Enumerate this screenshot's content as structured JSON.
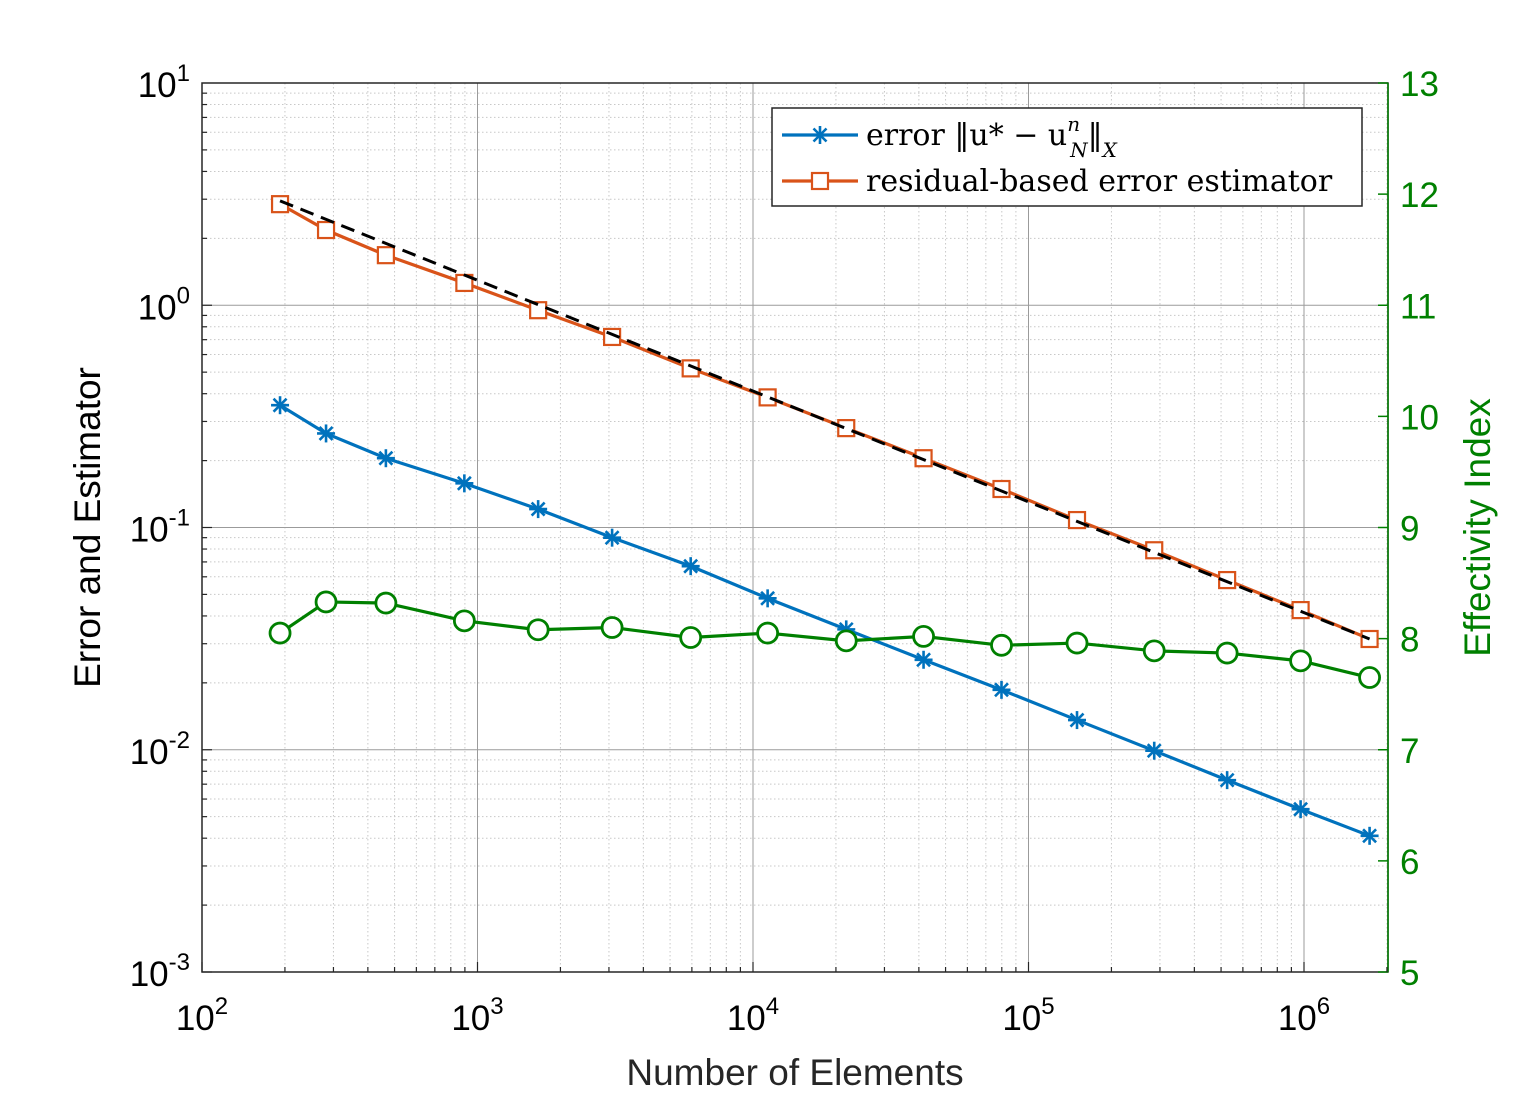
{
  "chart_data": {
    "type": "line",
    "xscale": "log",
    "xlabel": "Number of Elements",
    "ylabel_left": "Error and Estimator",
    "ylabel_right": "Effectivity Index",
    "xlim": [
      100,
      2000000
    ],
    "ylim_left": [
      0.001,
      10
    ],
    "ylim_right": [
      5,
      13
    ],
    "x_ticks": [
      {
        "base": "10",
        "exp": "2",
        "value": 100
      },
      {
        "base": "10",
        "exp": "3",
        "value": 1000
      },
      {
        "base": "10",
        "exp": "4",
        "value": 10000
      },
      {
        "base": "10",
        "exp": "5",
        "value": 100000
      },
      {
        "base": "10",
        "exp": "6",
        "value": 1000000
      }
    ],
    "y_left_ticks": [
      {
        "base": "10",
        "exp": "-3",
        "value": 0.001
      },
      {
        "base": "10",
        "exp": "-2",
        "value": 0.01
      },
      {
        "base": "10",
        "exp": "-1",
        "value": 0.1
      },
      {
        "base": "10",
        "exp": "0",
        "value": 1
      },
      {
        "base": "10",
        "exp": "1",
        "value": 10
      }
    ],
    "y_right_ticks": [
      "5",
      "6",
      "7",
      "8",
      "9",
      "10",
      "11",
      "12",
      "13"
    ],
    "x": [
      192,
      282,
      465,
      896,
      1660,
      3080,
      5940,
      11300,
      21800,
      41600,
      79800,
      150000,
      286000,
      526000,
      972000,
      1730000
    ],
    "series": [
      {
        "name": "error ‖u* − u_N^n‖_X",
        "axis": "left",
        "color": "#0072BD",
        "marker": "asterisk",
        "values": [
          0.355,
          0.265,
          0.205,
          0.158,
          0.121,
          0.09,
          0.067,
          0.048,
          0.0348,
          0.0254,
          0.0186,
          0.0136,
          0.0099,
          0.0073,
          0.0054,
          0.0041
        ]
      },
      {
        "name": "residual-based error estimator",
        "axis": "left",
        "color": "#D95319",
        "marker": "square",
        "values": [
          2.85,
          2.18,
          1.68,
          1.26,
          0.95,
          0.72,
          0.52,
          0.385,
          0.28,
          0.205,
          0.149,
          0.108,
          0.079,
          0.058,
          0.0425,
          0.0315
        ]
      },
      {
        "name": "effectivity index",
        "axis": "right",
        "color": "#008000",
        "marker": "circle",
        "values": [
          8.05,
          8.33,
          8.32,
          8.16,
          8.08,
          8.1,
          8.01,
          8.05,
          7.98,
          8.02,
          7.94,
          7.96,
          7.89,
          7.87,
          7.8,
          7.65
        ]
      }
    ],
    "reference_line": {
      "style": "dashed",
      "color": "#000000",
      "x": [
        192,
        1730000
      ],
      "values": [
        2.95,
        0.0315
      ]
    },
    "legend": {
      "position": "top-right",
      "entries": [
        {
          "text": "error ‖u* − u",
          "sub": "N",
          "sup": "n",
          "tail": "‖",
          "tailsub": "X",
          "series": 0
        },
        {
          "text": "residual-based error estimator",
          "series": 1
        }
      ]
    },
    "grid": true,
    "colors": {
      "axis": "#000000",
      "right_axis": "#008000",
      "major_grid": "#9b9b9b",
      "minor_grid": "#c8c8c8"
    }
  }
}
